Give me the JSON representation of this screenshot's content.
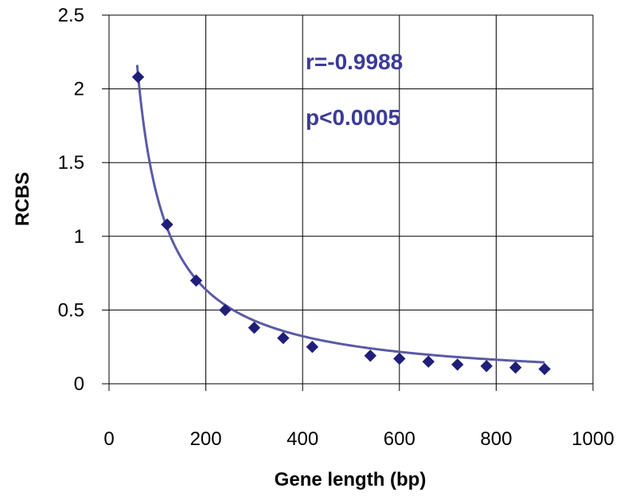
{
  "chart_data": {
    "type": "scatter",
    "title": "",
    "xlabel": "Gene length (bp)",
    "ylabel": "RCBS",
    "xlim": [
      0,
      1000
    ],
    "ylim": [
      0,
      2.5
    ],
    "x_ticks": [
      "0",
      "200",
      "400",
      "600",
      "800",
      "1000"
    ],
    "y_ticks": [
      "0",
      "0.5",
      "1",
      "1.5",
      "2",
      "2.5"
    ],
    "grid": true,
    "legend": "none",
    "series": [
      {
        "values": [
          [
            60,
            2.08
          ],
          [
            120,
            1.08
          ],
          [
            180,
            0.7
          ],
          [
            240,
            0.5
          ],
          [
            300,
            0.38
          ],
          [
            360,
            0.31
          ],
          [
            420,
            0.25
          ],
          [
            540,
            0.19
          ],
          [
            600,
            0.17
          ],
          [
            660,
            0.15
          ],
          [
            720,
            0.13
          ],
          [
            780,
            0.12
          ],
          [
            840,
            0.11
          ],
          [
            900,
            0.1
          ]
        ],
        "marker": "diamond",
        "color": "#1f1f7a"
      }
    ],
    "trendline": {
      "type": "power",
      "coefficient": 118,
      "exponent": -0.985,
      "x_range": [
        58,
        900
      ],
      "color": "#5a5aa6"
    },
    "annotations": [
      {
        "text": "r=-0.9988"
      },
      {
        "text": "p<0.0005"
      }
    ]
  }
}
